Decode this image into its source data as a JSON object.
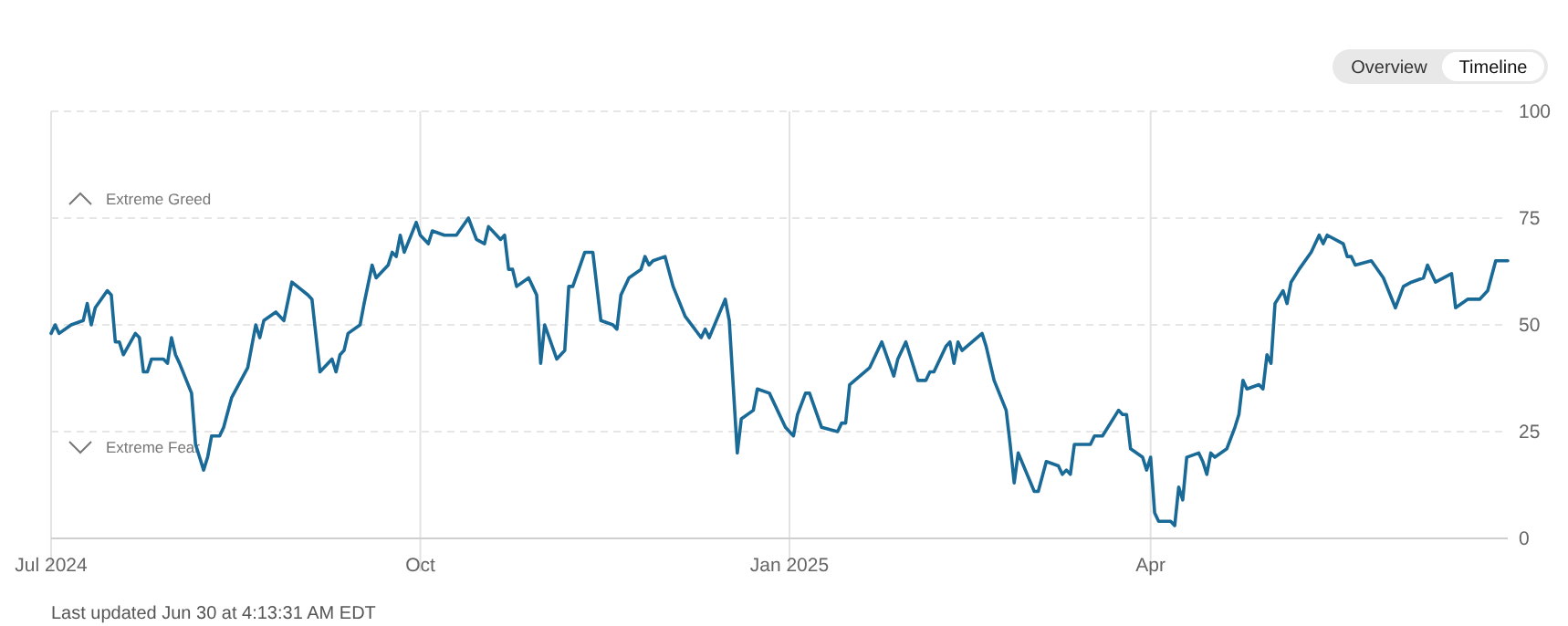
{
  "chart_data": {
    "type": "line",
    "x": [
      "2024-07-01",
      "2024-07-02",
      "2024-07-03",
      "2024-07-06",
      "2024-07-09",
      "2024-07-10",
      "2024-07-11",
      "2024-07-12",
      "2024-07-15",
      "2024-07-16",
      "2024-07-17",
      "2024-07-18",
      "2024-07-19",
      "2024-07-22",
      "2024-07-23",
      "2024-07-24",
      "2024-07-25",
      "2024-07-26",
      "2024-07-29",
      "2024-07-30",
      "2024-07-31",
      "2024-08-01",
      "2024-08-02",
      "2024-08-05",
      "2024-08-06",
      "2024-08-07",
      "2024-08-08",
      "2024-08-09",
      "2024-08-10",
      "2024-08-12",
      "2024-08-13",
      "2024-08-15",
      "2024-08-19",
      "2024-08-21",
      "2024-08-22",
      "2024-08-23",
      "2024-08-26",
      "2024-08-28",
      "2024-08-30",
      "2024-09-03",
      "2024-09-04",
      "2024-09-06",
      "2024-09-09",
      "2024-09-10",
      "2024-09-11",
      "2024-09-12",
      "2024-09-13",
      "2024-09-16",
      "2024-09-17",
      "2024-09-19",
      "2024-09-20",
      "2024-09-23",
      "2024-09-24",
      "2024-09-25",
      "2024-09-26",
      "2024-09-27",
      "2024-09-30",
      "2024-10-01",
      "2024-10-03",
      "2024-10-04",
      "2024-10-07",
      "2024-10-10",
      "2024-10-13",
      "2024-10-15",
      "2024-10-17",
      "2024-10-18",
      "2024-10-21",
      "2024-10-22",
      "2024-10-23",
      "2024-10-24",
      "2024-10-25",
      "2024-10-28",
      "2024-10-29",
      "2024-10-30",
      "2024-10-31",
      "2024-11-01",
      "2024-11-04",
      "2024-11-06",
      "2024-11-07",
      "2024-11-08",
      "2024-11-11",
      "2024-11-13",
      "2024-11-15",
      "2024-11-18",
      "2024-11-19",
      "2024-11-20",
      "2024-11-22",
      "2024-11-25",
      "2024-11-26",
      "2024-11-27",
      "2024-11-28",
      "2024-12-01",
      "2024-12-03",
      "2024-12-06",
      "2024-12-10",
      "2024-12-11",
      "2024-12-12",
      "2024-12-16",
      "2024-12-17",
      "2024-12-19",
      "2024-12-20",
      "2024-12-23",
      "2024-12-24",
      "2024-12-27",
      "2024-12-31",
      "2025-01-02",
      "2025-01-03",
      "2025-01-05",
      "2025-01-06",
      "2025-01-09",
      "2025-01-13",
      "2025-01-14",
      "2025-01-15",
      "2025-01-16",
      "2025-01-21",
      "2025-01-24",
      "2025-01-27",
      "2025-01-28",
      "2025-01-30",
      "2025-02-02",
      "2025-02-04",
      "2025-02-05",
      "2025-02-06",
      "2025-02-09",
      "2025-02-10",
      "2025-02-11",
      "2025-02-12",
      "2025-02-13",
      "2025-02-18",
      "2025-02-19",
      "2025-02-21",
      "2025-02-24",
      "2025-02-25",
      "2025-02-26",
      "2025-02-27",
      "2025-03-03",
      "2025-03-04",
      "2025-03-06",
      "2025-03-09",
      "2025-03-10",
      "2025-03-11",
      "2025-03-12",
      "2025-03-13",
      "2025-03-17",
      "2025-03-18",
      "2025-03-20",
      "2025-03-24",
      "2025-03-25",
      "2025-03-26",
      "2025-03-27",
      "2025-03-30",
      "2025-03-31",
      "2025-04-01",
      "2025-04-02",
      "2025-04-03",
      "2025-04-06",
      "2025-04-07",
      "2025-04-08",
      "2025-04-09",
      "2025-04-10",
      "2025-04-13",
      "2025-04-14",
      "2025-04-15",
      "2025-04-16",
      "2025-04-17",
      "2025-04-20",
      "2025-04-22",
      "2025-04-23",
      "2025-04-24",
      "2025-04-25",
      "2025-04-28",
      "2025-04-29",
      "2025-04-30",
      "2025-05-01",
      "2025-05-02",
      "2025-05-04",
      "2025-05-05",
      "2025-05-06",
      "2025-05-08",
      "2025-05-11",
      "2025-05-13",
      "2025-05-14",
      "2025-05-15",
      "2025-05-19",
      "2025-05-20",
      "2025-05-21",
      "2025-05-22",
      "2025-05-26",
      "2025-05-29",
      "2025-06-01",
      "2025-06-03",
      "2025-06-05",
      "2025-06-08",
      "2025-06-09",
      "2025-06-11",
      "2025-06-15",
      "2025-06-16",
      "2025-06-19",
      "2025-06-22",
      "2025-06-24",
      "2025-06-26",
      "2025-06-29"
    ],
    "series": [
      {
        "color": "#1a6a98",
        "values": [
          48,
          50,
          48,
          50,
          51,
          55,
          50,
          54,
          58,
          57,
          46,
          46,
          43,
          48,
          47,
          39,
          39,
          42,
          42,
          41,
          47,
          43,
          41,
          34,
          22,
          19,
          16,
          19,
          24,
          24,
          26,
          33,
          40,
          50,
          47,
          51,
          53,
          51,
          60,
          57,
          56,
          39,
          42,
          39,
          43,
          44,
          48,
          50,
          55,
          64,
          61,
          64,
          67,
          66,
          71,
          67,
          74,
          71,
          69,
          72,
          71,
          71,
          75,
          70,
          69,
          73,
          70,
          71,
          63,
          63,
          59,
          61,
          59,
          57,
          41,
          50,
          42,
          44,
          59,
          59,
          67,
          67,
          51,
          50,
          49,
          57,
          61,
          63,
          66,
          64,
          65,
          66,
          59,
          52,
          47,
          49,
          47,
          56,
          51,
          20,
          28,
          30,
          35,
          34,
          26,
          24,
          29,
          34,
          34,
          26,
          25,
          27,
          27,
          36,
          40,
          46,
          38,
          42,
          46,
          37,
          37,
          39,
          39,
          45,
          46,
          41,
          46,
          44,
          48,
          45,
          37,
          30,
          22,
          13,
          20,
          11,
          11,
          18,
          17,
          15,
          16,
          15,
          22,
          22,
          24,
          24,
          30,
          29,
          29,
          21,
          19,
          16,
          19,
          6,
          4,
          4,
          3,
          12,
          9,
          19,
          20,
          18,
          15,
          20,
          19,
          21,
          26,
          29,
          37,
          35,
          36,
          35,
          43,
          41,
          55,
          58,
          55,
          60,
          63,
          67,
          71,
          69,
          71,
          69,
          66,
          66,
          64,
          65,
          61,
          54,
          59,
          60,
          61,
          64,
          60,
          62,
          54,
          56,
          56,
          58,
          65,
          65
        ]
      }
    ],
    "xlim": [
      "2024-07-01",
      "2025-06-29"
    ],
    "xticks": [
      {
        "value": "2024-07-01",
        "label": "Jul 2024"
      },
      {
        "value": "2024-10-01",
        "label": "Oct"
      },
      {
        "value": "2025-01-01",
        "label": "Jan 2025"
      },
      {
        "value": "2025-04-01",
        "label": "Apr"
      }
    ],
    "ylim": [
      0,
      100
    ],
    "yticks": [
      0,
      25,
      50,
      75,
      100
    ],
    "grid": true,
    "annotations": [
      "Overview",
      "Timeline",
      "Extreme Greed",
      "Extreme Fear",
      "Last updated Jun 30 at 4:13:31 AM EDT"
    ]
  }
}
